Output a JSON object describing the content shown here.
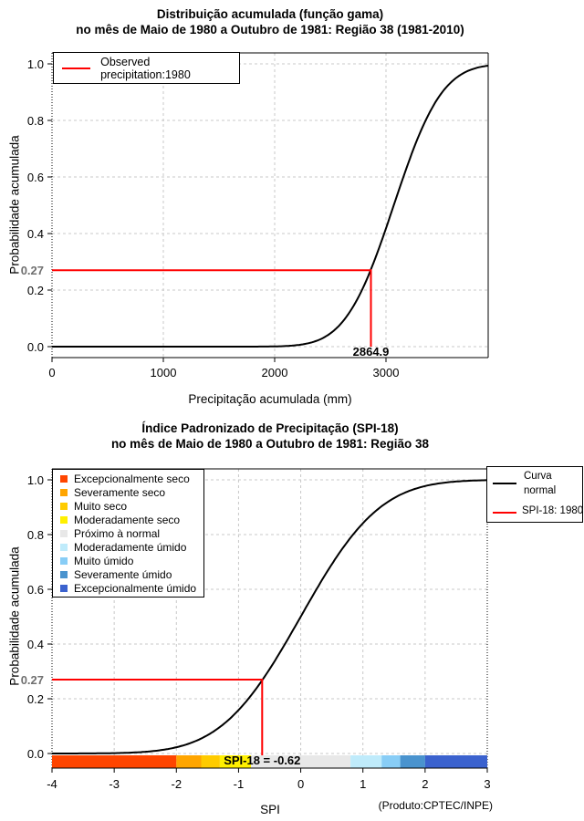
{
  "colors": {
    "background": "#FFFFFF",
    "curve": "#000000",
    "observed": "#FF0000",
    "grid": "#C8C8C8",
    "edge_dotted": "#000000",
    "annotation_gray": "#707070"
  },
  "chart_data": [
    {
      "type": "line",
      "title": "Distribuição acumulada (função gama)",
      "subtitle": "no mês de Maio de 1980 a Outubro de 1981: Região 38 (1981-2010)",
      "xlabel": "Precipitação acumulada (mm)",
      "ylabel": "Probabilidade acumulada",
      "xlim": [
        0,
        3918
      ],
      "ylim": [
        0,
        1
      ],
      "grid": true,
      "xticks": [
        {
          "v": 0,
          "label": "0"
        },
        {
          "v": 1000,
          "label": "1000"
        },
        {
          "v": 2000,
          "label": "2000"
        },
        {
          "v": 3000,
          "label": "3000"
        }
      ],
      "yticks": [
        {
          "v": 0.0,
          "label": "0.0"
        },
        {
          "v": 0.2,
          "label": "0.2"
        },
        {
          "v": 0.4,
          "label": "0.4"
        },
        {
          "v": 0.6,
          "label": "0.6"
        },
        {
          "v": 0.8,
          "label": "0.8"
        },
        {
          "v": 1.0,
          "label": "1.0"
        }
      ],
      "legend": {
        "position": "top-left",
        "items": [
          {
            "label": "Observed precipitation:1980",
            "color": "#FF0000"
          }
        ]
      },
      "series": [
        {
          "name": "Distribuição acumulada (função gama)",
          "color": "#000000",
          "model": "normal_cdf",
          "mu": 3070,
          "sigma": 340,
          "points": [
            [
              0,
              0
            ],
            [
              1000,
              0
            ],
            [
              2000,
              0.001
            ],
            [
              2200,
              0.005
            ],
            [
              2400,
              0.024
            ],
            [
              2600,
              0.083
            ],
            [
              2800,
              0.214
            ],
            [
              2864.9,
              0.27
            ],
            [
              3000,
              0.419
            ],
            [
              3200,
              0.651
            ],
            [
              3400,
              0.834
            ],
            [
              3600,
              0.94
            ],
            [
              3800,
              0.984
            ],
            [
              3918,
              0.994
            ]
          ]
        },
        {
          "name": "Observed precipitation:1980",
          "color": "#FF0000",
          "role": "reference-lines",
          "x": 2864.9,
          "p": 0.27
        }
      ],
      "annotations": [
        {
          "text": "0.27",
          "axis": "y",
          "value": 0.27,
          "color": "#707070"
        },
        {
          "text": "2864.9",
          "axis": "x",
          "value": 2864.9,
          "color": "#000000"
        }
      ]
    },
    {
      "type": "line",
      "title": "Índice Padronizado de Precipitação (SPI-18)",
      "subtitle": "no mês de Maio de 1980 a Outubro de 1981: Região 38",
      "xlabel": "SPI",
      "ylabel": "Probabilidade acumulada",
      "footer": "(Produto:CPTEC/INPE)",
      "xlim": [
        -4,
        3
      ],
      "ylim": [
        0,
        1
      ],
      "grid": true,
      "xticks": [
        {
          "v": -4,
          "label": "-4"
        },
        {
          "v": -3,
          "label": "-3"
        },
        {
          "v": -2,
          "label": "-2"
        },
        {
          "v": -1,
          "label": "-1"
        },
        {
          "v": 0,
          "label": "0"
        },
        {
          "v": 1,
          "label": "1"
        },
        {
          "v": 2,
          "label": "2"
        },
        {
          "v": 3,
          "label": "3"
        }
      ],
      "yticks": [
        {
          "v": 0.0,
          "label": "0.0"
        },
        {
          "v": 0.2,
          "label": "0.2"
        },
        {
          "v": 0.4,
          "label": "0.4"
        },
        {
          "v": 0.6,
          "label": "0.6"
        },
        {
          "v": 0.8,
          "label": "0.8"
        },
        {
          "v": 1.0,
          "label": "1.0"
        }
      ],
      "legend": {
        "position": "top-right",
        "items": [
          {
            "label": "Curva normal",
            "label_lines": [
              "Curva",
              "normal"
            ],
            "color": "#000000"
          },
          {
            "label": "SPI-18: 1980",
            "color": "#FF0000"
          }
        ]
      },
      "categories": [
        {
          "label": "Excepcionalmente seco",
          "color": "#FF4500",
          "range": [
            -4,
            -2
          ]
        },
        {
          "label": "Severamente seco",
          "color": "#FFA500",
          "range": [
            -2,
            -1.6
          ]
        },
        {
          "label": "Muito seco",
          "color": "#FFCB00",
          "range": [
            -1.6,
            -1.3
          ]
        },
        {
          "label": "Moderadamente seco",
          "color": "#FFF000",
          "range": [
            -1.3,
            -0.8
          ]
        },
        {
          "label": "Próximo à normal",
          "color": "#E8E8E8",
          "range": [
            -0.8,
            0.8
          ]
        },
        {
          "label": "Moderadamente úmido",
          "color": "#BFEBFB",
          "range": [
            0.8,
            1.3
          ]
        },
        {
          "label": "Muito úmido",
          "color": "#88CDF6",
          "range": [
            1.3,
            1.6
          ]
        },
        {
          "label": "Severamente úmido",
          "color": "#4A93CE",
          "range": [
            1.6,
            2.0
          ]
        },
        {
          "label": "Excepcionalmente úmido",
          "color": "#3B62CE",
          "range": [
            2.0,
            3.0
          ]
        }
      ],
      "series": [
        {
          "name": "Curva normal",
          "color": "#000000",
          "model": "normal_cdf",
          "mu": 0,
          "sigma": 1,
          "points": [
            [
              -4,
              0
            ],
            [
              -3,
              0.001
            ],
            [
              -2.5,
              0.006
            ],
            [
              -2,
              0.023
            ],
            [
              -1.5,
              0.067
            ],
            [
              -1,
              0.159
            ],
            [
              -0.62,
              0.268
            ],
            [
              -0.5,
              0.309
            ],
            [
              0,
              0.5
            ],
            [
              0.5,
              0.691
            ],
            [
              1,
              0.841
            ],
            [
              1.5,
              0.933
            ],
            [
              2,
              0.977
            ],
            [
              2.5,
              0.994
            ],
            [
              3,
              0.999
            ]
          ]
        },
        {
          "name": "SPI-18: 1980",
          "color": "#FF0000",
          "role": "reference-lines",
          "x": -0.62,
          "p": 0.27
        }
      ],
      "annotations": [
        {
          "text": "0.27",
          "axis": "y",
          "value": 0.27,
          "color": "#707070"
        },
        {
          "text": "SPI-18 = -0.62",
          "axis": "x",
          "value": -0.62,
          "color": "#000000"
        }
      ]
    }
  ]
}
